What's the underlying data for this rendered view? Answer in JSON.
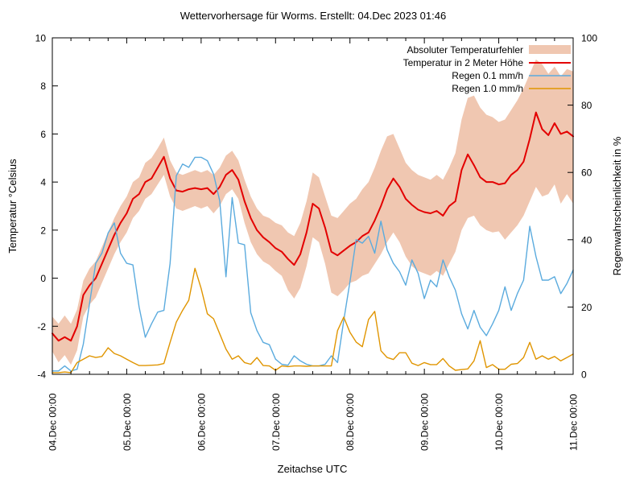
{
  "title": "Wettervorhersage für Worms. Erstellt: 04.Dec 2023 01:46",
  "axes": {
    "x": {
      "label": "Zeitachse UTC",
      "tick_labels": [
        "04.Dec 00:00",
        "05.Dec 00:00",
        "06.Dec 00:00",
        "07.Dec 00:00",
        "08.Dec 00:00",
        "09.Dec 00:00",
        "10.Dec 00:00",
        "11.Dec 00:00"
      ],
      "days": 7,
      "minor_step_hours": 6,
      "major_step_hours": 24
    },
    "y_left": {
      "label": "Temperatur °Celsius",
      "tick_values": [
        -4,
        -2,
        0,
        2,
        4,
        6,
        8,
        10
      ],
      "tick_labels": [
        "-4",
        "-2",
        "0",
        "2",
        "4",
        "6",
        "8",
        "10"
      ]
    },
    "y_right": {
      "label": "Regenwahrscheinlichkeit in %",
      "tick_values": [
        0,
        20,
        40,
        60,
        80,
        100
      ],
      "tick_labels": [
        "0",
        "20",
        "40",
        "60",
        "80",
        "100"
      ]
    }
  },
  "legend": [
    {
      "label": "Absoluter Temperaturfehler",
      "type": "band",
      "color": "#f0c7b1"
    },
    {
      "label": "Temperatur in 2 Meter Höhe",
      "type": "line",
      "color": "#e30000"
    },
    {
      "label": "Regen 0.1 mm/h",
      "type": "line",
      "color": "#5babde"
    },
    {
      "label": "Regen 1.0 mm/h",
      "type": "line",
      "color": "#e09500"
    }
  ],
  "colors": {
    "band": "#f0c7b1",
    "temperature": "#e30000",
    "rain01": "#5babde",
    "rain10": "#e09500",
    "axis": "#000000"
  },
  "chart_data": {
    "type": "line",
    "title": "Wettervorhersage für Worms. Erstellt: 04.Dec 2023 01:46",
    "xlabel": "Zeitachse UTC",
    "ylabel_left": "Temperatur °Celsius",
    "ylabel_right": "Regenwahrscheinlichkeit in %",
    "x_range_hours": [
      0,
      168
    ],
    "x_start": "04.Dec 00:00",
    "x_end": "11.Dec 00:00",
    "y_left_range": [
      -4,
      10
    ],
    "y_right_range": [
      0,
      100
    ],
    "grid": false,
    "legend_position": "top-right-inside",
    "x_hours": [
      0,
      2,
      4,
      6,
      8,
      10,
      12,
      14,
      16,
      18,
      20,
      22,
      24,
      26,
      28,
      30,
      32,
      34,
      36,
      38,
      40,
      42,
      44,
      46,
      48,
      50,
      52,
      54,
      56,
      58,
      60,
      62,
      64,
      66,
      68,
      70,
      72,
      74,
      76,
      78,
      80,
      82,
      84,
      86,
      88,
      90,
      92,
      94,
      96,
      98,
      100,
      102,
      104,
      106,
      108,
      110,
      112,
      114,
      116,
      118,
      120,
      122,
      124,
      126,
      128,
      130,
      132,
      134,
      136,
      138,
      140,
      142,
      144,
      146,
      148,
      150,
      152,
      154,
      156,
      158,
      160,
      162,
      164,
      166,
      168
    ],
    "series": [
      {
        "name": "Absoluter Temperaturfehler",
        "axis": "left",
        "style": "band",
        "color": "#f0c7b1",
        "upper": [
          -1.6,
          -1.9,
          -1.55,
          -1.9,
          -1.3,
          -0.1,
          0.4,
          0.7,
          1.3,
          1.9,
          2.5,
          3.0,
          3.4,
          4.0,
          4.2,
          4.8,
          5.0,
          5.4,
          5.85,
          4.9,
          4.4,
          4.3,
          4.4,
          4.5,
          4.4,
          4.5,
          4.3,
          4.6,
          5.1,
          5.3,
          4.9,
          4.1,
          3.4,
          2.9,
          2.6,
          2.5,
          2.3,
          2.2,
          1.9,
          1.75,
          2.3,
          3.2,
          4.4,
          4.2,
          3.4,
          2.6,
          2.5,
          2.8,
          3.1,
          3.3,
          3.7,
          4.0,
          4.6,
          5.3,
          5.9,
          6.0,
          5.4,
          4.8,
          4.5,
          4.3,
          4.2,
          4.1,
          4.3,
          4.1,
          4.6,
          5.2,
          6.6,
          7.5,
          7.6,
          7.1,
          6.8,
          6.7,
          6.5,
          6.6,
          7.0,
          7.4,
          7.9,
          8.5,
          9.1,
          8.9,
          8.5,
          8.8,
          8.4,
          8.7,
          8.6
        ],
        "lower": [
          -3.05,
          -3.5,
          -3.2,
          -3.6,
          -3.0,
          -1.6,
          -1.1,
          -0.8,
          -0.2,
          0.4,
          1.0,
          1.5,
          1.9,
          2.5,
          2.8,
          3.3,
          3.5,
          3.9,
          4.3,
          3.4,
          2.9,
          2.8,
          2.9,
          3.0,
          2.9,
          3.0,
          2.7,
          3.0,
          3.5,
          3.7,
          3.3,
          2.3,
          1.5,
          1.0,
          0.7,
          0.55,
          0.3,
          0.1,
          -0.5,
          -0.85,
          -0.4,
          0.5,
          1.7,
          1.5,
          0.6,
          -0.6,
          -0.75,
          -0.5,
          -0.2,
          -0.1,
          0.1,
          0.2,
          0.6,
          1.0,
          1.5,
          1.9,
          1.5,
          0.9,
          0.5,
          0.3,
          0.2,
          0.1,
          0.3,
          0.1,
          0.6,
          1.1,
          2.0,
          2.5,
          2.6,
          2.2,
          2.0,
          1.9,
          1.95,
          1.6,
          1.9,
          2.2,
          2.6,
          3.2,
          3.8,
          3.4,
          3.5,
          3.9,
          3.1,
          3.5,
          3.1
        ]
      },
      {
        "name": "Temperatur in 2 Meter Höhe",
        "axis": "left",
        "style": "line",
        "color": "#e30000",
        "values": [
          -2.3,
          -2.6,
          -2.45,
          -2.6,
          -2.0,
          -0.7,
          -0.3,
          0.0,
          0.6,
          1.2,
          1.8,
          2.3,
          2.7,
          3.3,
          3.5,
          4.0,
          4.15,
          4.6,
          5.05,
          4.15,
          3.65,
          3.6,
          3.7,
          3.75,
          3.7,
          3.75,
          3.5,
          3.8,
          4.3,
          4.5,
          4.1,
          3.2,
          2.5,
          2.0,
          1.7,
          1.5,
          1.25,
          1.1,
          0.8,
          0.55,
          1.0,
          1.9,
          3.1,
          2.9,
          2.1,
          1.1,
          0.95,
          1.15,
          1.35,
          1.5,
          1.75,
          1.9,
          2.4,
          3.0,
          3.7,
          4.15,
          3.8,
          3.3,
          3.05,
          2.85,
          2.75,
          2.7,
          2.8,
          2.6,
          3.0,
          3.2,
          4.5,
          5.15,
          4.7,
          4.2,
          4.0,
          4.0,
          3.9,
          3.95,
          4.3,
          4.5,
          4.85,
          5.8,
          6.9,
          6.2,
          5.95,
          6.45,
          6.0,
          6.1,
          5.9
        ]
      },
      {
        "name": "Regen 0.1 mm/h",
        "axis": "right",
        "style": "line",
        "color": "#5babde",
        "values": [
          1,
          1,
          2.5,
          1,
          1.5,
          9,
          21,
          33,
          36,
          42,
          45,
          36,
          33,
          32.5,
          20,
          11,
          15,
          18.5,
          19,
          33,
          59,
          62.5,
          61.5,
          64.5,
          64.5,
          63.5,
          59.5,
          51.5,
          29,
          52.5,
          39,
          38.5,
          18.3,
          13,
          9.5,
          8.8,
          4.5,
          3,
          2.7,
          5.5,
          4,
          3,
          2.5,
          2.5,
          3,
          5.5,
          3.5,
          16,
          27.5,
          40,
          39,
          41,
          36,
          45.5,
          37,
          33,
          30.5,
          26.5,
          34,
          30,
          22.5,
          28,
          26,
          34,
          29,
          25,
          18,
          13.5,
          19,
          14,
          11.5,
          15,
          19,
          26,
          19,
          24,
          28,
          44,
          35,
          28,
          28,
          29,
          24,
          27,
          31
        ]
      },
      {
        "name": "Regen 1.0 mm/h",
        "axis": "right",
        "style": "line",
        "color": "#e09500",
        "values": [
          0.5,
          0.5,
          0.7,
          0.5,
          3.5,
          4.5,
          5.5,
          5,
          5.3,
          7.9,
          6.2,
          5.5,
          4.5,
          3.5,
          2.6,
          2.6,
          2.7,
          2.8,
          3.2,
          9.5,
          15.5,
          19,
          22,
          31.5,
          25.5,
          18,
          16.5,
          12,
          7.5,
          4.5,
          5.5,
          3.5,
          3,
          5,
          2.6,
          2.5,
          1.2,
          2.5,
          2.3,
          2.5,
          2.5,
          2.4,
          2.5,
          2.5,
          2.5,
          2.5,
          13,
          17,
          12.5,
          9.6,
          8.2,
          16.3,
          18.7,
          7,
          5,
          4.4,
          6.4,
          6.4,
          3.3,
          2.6,
          3.5,
          2.9,
          2.9,
          4.7,
          2.5,
          1.2,
          1.4,
          1.6,
          4,
          10,
          2,
          2.9,
          1.5,
          1.5,
          3,
          3.2,
          5,
          9.5,
          4.5,
          5.5,
          4.5,
          5.3,
          4,
          5,
          6
        ]
      }
    ]
  }
}
